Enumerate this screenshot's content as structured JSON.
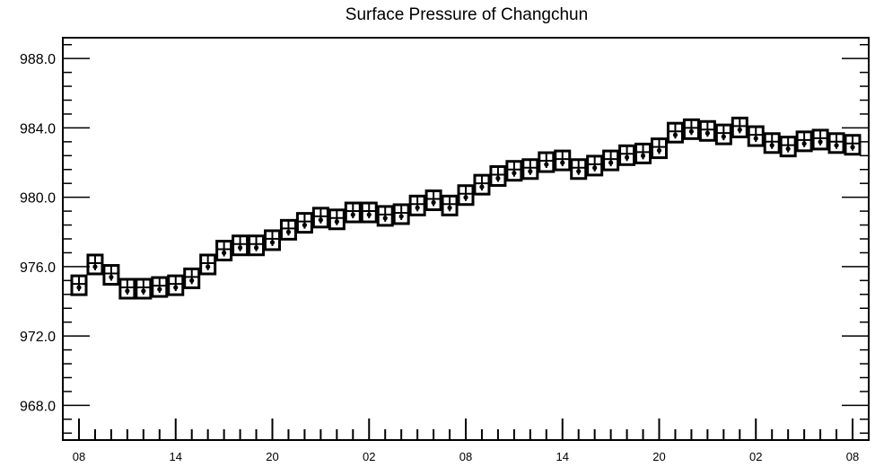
{
  "chart_data": {
    "type": "scatter",
    "title": "Surface Pressure of Changchun",
    "xlabel": "",
    "ylabel": "",
    "ylim": [
      966,
      989.2
    ],
    "yticks": [
      968.0,
      972.0,
      976.0,
      980.0,
      984.0,
      988.0
    ],
    "ytick_labels": [
      "968.0",
      "972.0",
      "976.0",
      "980.0",
      "984.0",
      "988.0"
    ],
    "xtick_labels": [
      "08",
      "14",
      "20",
      "02",
      "08",
      "14",
      "20",
      "02",
      "08"
    ],
    "xtick_positions": [
      0,
      6,
      12,
      18,
      24,
      30,
      36,
      42,
      48
    ],
    "x_hours": [
      0,
      1,
      2,
      3,
      4,
      5,
      6,
      7,
      8,
      9,
      10,
      11,
      12,
      13,
      14,
      15,
      16,
      17,
      18,
      19,
      20,
      21,
      22,
      23,
      24,
      25,
      26,
      27,
      28,
      29,
      30,
      31,
      32,
      33,
      34,
      35,
      36,
      37,
      38,
      39,
      40,
      41,
      42,
      43,
      44,
      45,
      46,
      47,
      48
    ],
    "values": [
      974.9,
      976.1,
      975.5,
      974.7,
      974.7,
      974.8,
      974.9,
      975.3,
      976.1,
      976.9,
      977.2,
      977.2,
      977.5,
      978.1,
      978.5,
      978.8,
      978.7,
      979.1,
      979.1,
      978.9,
      979.0,
      979.5,
      979.8,
      979.5,
      980.1,
      980.7,
      981.2,
      981.5,
      981.6,
      982.0,
      982.1,
      981.6,
      981.8,
      982.1,
      982.4,
      982.5,
      982.8,
      983.7,
      983.9,
      983.8,
      983.6,
      984.0,
      983.5,
      983.1,
      982.9,
      983.2,
      983.3,
      983.1,
      983.0
    ],
    "grid": false,
    "legend": "none"
  }
}
